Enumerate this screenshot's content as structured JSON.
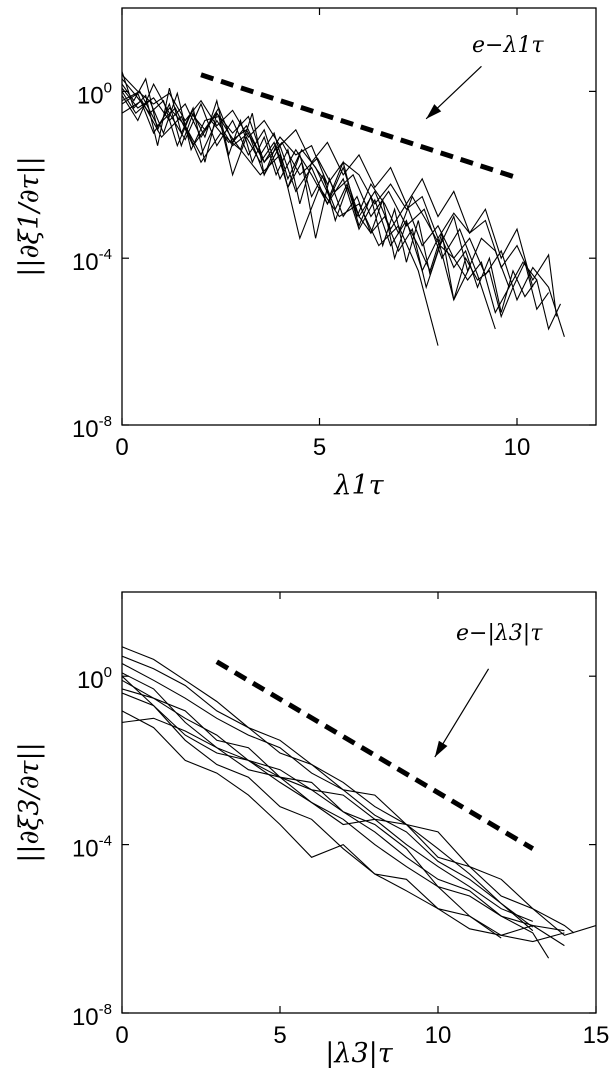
{
  "chart_data": [
    {
      "id": "top",
      "type": "line",
      "yscale": "log",
      "xlim": [
        0,
        12
      ],
      "ylim": [
        1e-08,
        100
      ],
      "xlabel": "λ1τ",
      "ylabel": "||∂ξ1/∂τ||",
      "xticks": [
        {
          "value": 0,
          "label": "0"
        },
        {
          "value": 5,
          "label": "5"
        },
        {
          "value": 10,
          "label": "10"
        }
      ],
      "yticks": [
        {
          "value": 1,
          "base": "10",
          "exp": "0"
        },
        {
          "value": 0.0001,
          "base": "10",
          "exp": "-4"
        },
        {
          "value": 1e-08,
          "base": "10",
          "exp": "-8"
        }
      ],
      "reference": {
        "x": [
          2,
          10
        ],
        "y": [
          2.5,
          0.0085
        ],
        "style": "dashed"
      },
      "annotation": {
        "label": "e−λ1τ",
        "arrow_from": [
          9.1,
          4
        ],
        "arrow_to": [
          7.7,
          0.22
        ]
      },
      "series": [
        {
          "x": [
            0.0,
            0.3,
            0.6,
            0.9,
            1.2,
            1.5,
            1.8,
            2.1,
            2.4,
            2.7,
            3.0,
            3.3,
            3.6,
            3.9,
            4.2,
            4.5,
            4.8,
            5.1,
            5.4,
            5.7,
            6.0,
            6.3,
            6.6,
            6.9,
            7.2,
            7.5,
            7.8,
            8.1,
            8.4,
            8.7,
            9.0,
            9.3,
            9.6,
            9.9,
            10.2,
            10.5,
            10.8,
            11.1
          ],
          "y": [
            1.5,
            0.6,
            2.0,
            0.12,
            0.5,
            0.05,
            0.3,
            0.08,
            0.6,
            0.03,
            0.2,
            0.02,
            0.08,
            0.01,
            0.04,
            0.002,
            0.02,
            0.008,
            0.0015,
            0.006,
            0.0006,
            0.003,
            0.0002,
            0.0015,
            8e-05,
            0.0008,
            4e-05,
            0.0003,
            6e-05,
            0.00015,
            2e-05,
            0.0001,
            5e-06,
            5e-05,
            1.2e-05,
            3e-05,
            2e-06,
            8e-06
          ]
        },
        {
          "x": [
            0.0,
            0.3,
            0.6,
            0.9,
            1.2,
            1.5,
            1.8,
            2.1,
            2.4,
            2.7,
            3.0,
            3.3,
            3.6,
            3.9,
            4.2,
            4.5,
            4.8,
            5.1,
            5.4,
            5.7,
            6.0,
            6.3,
            6.6,
            6.9,
            7.2,
            7.5,
            7.8,
            8.1,
            8.4,
            8.7,
            9.0,
            9.3,
            9.6,
            9.9,
            10.2,
            10.5,
            10.8
          ],
          "y": [
            3.0,
            0.4,
            0.8,
            0.05,
            1.2,
            0.1,
            0.4,
            0.02,
            0.3,
            0.1,
            0.04,
            0.3,
            0.01,
            0.05,
            0.005,
            0.03,
            0.003,
            0.01,
            0.0008,
            0.005,
            0.001,
            0.0004,
            0.0025,
            0.0001,
            0.0007,
            0.0002,
            5e-05,
            0.0004,
            1e-05,
            0.0001,
            3e-05,
            5e-05,
            4e-06,
            2e-05,
            8e-05,
            6e-06,
            1.5e-05
          ]
        },
        {
          "x": [
            0.0,
            0.4,
            0.8,
            1.2,
            1.6,
            2.0,
            2.4,
            2.8,
            3.2,
            3.6,
            4.0,
            4.4,
            4.8,
            5.2,
            5.6,
            6.0,
            6.4,
            6.8,
            7.2,
            7.6,
            8.0,
            8.4,
            8.8,
            9.2,
            9.6,
            10.0,
            10.4,
            10.8,
            11.2
          ],
          "y": [
            0.8,
            0.2,
            1.5,
            0.3,
            0.07,
            0.5,
            0.05,
            0.2,
            0.03,
            0.12,
            0.008,
            0.04,
            0.01,
            0.002,
            0.015,
            0.001,
            0.004,
            0.0005,
            0.002,
            0.0002,
            0.0006,
            0.0001,
            0.0003,
            4e-05,
            0.00015,
            1e-05,
            6e-05,
            2e-05,
            1.3e-06
          ]
        },
        {
          "x": [
            0.0,
            0.35,
            0.7,
            1.05,
            1.4,
            1.75,
            2.1,
            2.45,
            2.8,
            3.15,
            3.5,
            3.85,
            4.2,
            4.55,
            4.9,
            5.25,
            5.6,
            5.95,
            6.3,
            6.65,
            7.0,
            7.35,
            7.7,
            8.05,
            8.4,
            8.75,
            9.1,
            9.45,
            9.8
          ],
          "y": [
            1.0,
            0.3,
            0.6,
            0.1,
            0.9,
            0.04,
            0.2,
            0.25,
            0.01,
            0.08,
            0.02,
            0.06,
            0.005,
            0.02,
            0.0003,
            0.008,
            0.001,
            0.003,
            0.0004,
            0.001,
            0.00015,
            0.0005,
            2e-05,
            0.0002,
            0.0001,
            3e-05,
            8e-05,
            5e-06,
            2e-05
          ]
        },
        {
          "x": [
            0.0,
            0.4,
            0.8,
            1.2,
            1.6,
            2.0,
            2.4,
            2.8,
            3.2,
            3.6,
            4.0,
            4.4,
            4.8,
            5.2,
            5.6,
            6.0,
            6.4,
            6.8,
            7.2,
            7.6,
            8.0,
            8.4,
            8.8
          ],
          "y": [
            0.5,
            0.9,
            0.1,
            0.4,
            0.15,
            0.03,
            0.2,
            0.05,
            0.1,
            0.01,
            0.05,
            0.004,
            0.015,
            0.002,
            0.008,
            0.0005,
            0.0025,
            0.0002,
            0.0008,
            5e-05,
            0.0003,
            1e-05,
            6e-05
          ]
        },
        {
          "x": [
            0.0,
            0.35,
            0.7,
            1.05,
            1.4,
            1.75,
            2.1,
            2.45,
            2.8,
            3.15,
            3.5,
            3.85,
            4.2,
            4.55,
            4.9,
            5.25,
            5.6,
            5.95,
            6.3,
            6.65,
            7.0,
            7.35,
            7.7,
            8.05,
            8.4,
            8.75,
            9.1,
            9.45,
            9.8,
            10.15,
            10.5
          ],
          "y": [
            2.0,
            0.8,
            0.3,
            0.6,
            0.05,
            0.3,
            0.12,
            0.4,
            0.06,
            0.15,
            0.03,
            0.1,
            0.008,
            0.04,
            0.015,
            0.003,
            0.02,
            0.001,
            0.006,
            0.002,
            0.0004,
            0.003,
            0.0008,
            0.0002,
            0.001,
            5e-05,
            0.0003,
            0.00015,
            2e-05,
            8e-05,
            3e-05
          ]
        },
        {
          "x": [
            0.0,
            0.5,
            1.0,
            1.5,
            2.0,
            2.5,
            3.0,
            3.5,
            4.0,
            4.5,
            5.0,
            5.5,
            6.0,
            6.5,
            7.0,
            7.5,
            8.0
          ],
          "y": [
            0.3,
            0.6,
            0.08,
            0.25,
            0.02,
            0.1,
            0.04,
            0.01,
            0.03,
            0.0003,
            0.005,
            0.001,
            0.002,
            0.0002,
            0.0006,
            5e-05,
            8e-07
          ]
        },
        {
          "x": [
            0.0,
            0.4,
            0.8,
            1.2,
            1.6,
            2.0,
            2.4,
            2.8,
            3.2,
            3.6,
            4.0,
            4.4,
            4.8,
            5.2,
            5.6,
            6.0,
            6.4,
            6.8,
            7.2,
            7.6,
            8.0,
            8.4,
            8.8,
            9.2,
            9.6,
            10.0,
            10.4,
            10.8,
            11.0
          ],
          "y": [
            1.2,
            0.4,
            0.7,
            0.2,
            0.5,
            0.08,
            0.3,
            0.1,
            0.25,
            0.02,
            0.08,
            0.03,
            0.05,
            0.006,
            0.02,
            0.01,
            0.002,
            0.006,
            0.0015,
            0.003,
            0.0003,
            0.0012,
            0.0004,
            0.0008,
            6e-05,
            0.0002,
            3e-05,
            0.00012,
            4e-06
          ]
        },
        {
          "x": [
            0.0,
            0.45,
            0.9,
            1.35,
            1.8,
            2.25,
            2.7,
            3.15,
            3.6,
            4.05,
            4.5,
            4.95,
            5.4,
            5.85,
            6.3,
            6.75,
            7.2,
            7.65,
            8.1,
            8.55,
            9.0,
            9.45
          ],
          "y": [
            0.6,
            1.0,
            0.15,
            0.4,
            0.05,
            0.2,
            0.06,
            0.12,
            0.02,
            0.06,
            0.01,
            0.025,
            0.004,
            0.01,
            0.001,
            0.004,
            0.0006,
            0.0015,
            0.0001,
            0.0005,
            4e-05,
            2e-06
          ]
        },
        {
          "x": [
            0.0,
            0.4,
            0.8,
            1.2,
            1.6,
            2.0,
            2.4,
            2.8,
            3.2,
            3.6,
            4.0,
            4.4,
            4.8,
            5.2,
            5.6,
            6.0,
            6.4,
            6.8,
            7.2,
            7.6,
            8.0,
            8.4,
            8.8,
            9.2,
            9.6,
            10.0,
            10.4
          ],
          "y": [
            2.5,
            1.0,
            0.5,
            0.9,
            0.2,
            0.6,
            0.15,
            0.35,
            0.08,
            0.2,
            0.05,
            0.12,
            0.02,
            0.06,
            0.01,
            0.03,
            0.005,
            0.015,
            0.002,
            0.008,
            0.001,
            0.004,
            0.0004,
            0.0015,
            0.0001,
            0.0005,
            2e-05
          ]
        }
      ]
    },
    {
      "id": "bottom",
      "type": "line",
      "yscale": "log",
      "xlim": [
        0,
        15
      ],
      "ylim": [
        1e-08,
        100
      ],
      "xlabel": "|λ3|τ",
      "ylabel": "||∂ξ3/∂τ||",
      "xticks": [
        {
          "value": 0,
          "label": "0"
        },
        {
          "value": 5,
          "label": "5"
        },
        {
          "value": 10,
          "label": "10"
        },
        {
          "value": 15,
          "label": "15"
        }
      ],
      "yticks": [
        {
          "value": 1,
          "base": "10",
          "exp": "0"
        },
        {
          "value": 0.0001,
          "base": "10",
          "exp": "-4"
        },
        {
          "value": 1e-08,
          "base": "10",
          "exp": "-8"
        }
      ],
      "reference": {
        "x": [
          3,
          13
        ],
        "y": [
          2.2,
          8e-05
        ],
        "style": "dashed"
      },
      "annotation": {
        "label": "e−|λ3|τ",
        "arrow_from": [
          11.6,
          1.5
        ],
        "arrow_to": [
          9.9,
          0.012
        ]
      },
      "series": [
        {
          "x": [
            0,
            1,
            2,
            3,
            4,
            5,
            6,
            7,
            8,
            9,
            10,
            11,
            12,
            13
          ],
          "y": [
            5,
            2.5,
            0.8,
            0.25,
            0.06,
            0.03,
            0.008,
            0.003,
            0.0008,
            0.0003,
            8e-05,
            2e-05,
            4e-06,
            1.1e-06
          ]
        },
        {
          "x": [
            0,
            1,
            2,
            3,
            4,
            5,
            6,
            7,
            8,
            9,
            10,
            11,
            12,
            13,
            14,
            14.3
          ],
          "y": [
            3,
            1.5,
            0.6,
            0.15,
            0.06,
            0.015,
            0.008,
            0.002,
            0.0015,
            0.0003,
            0.0002,
            3e-05,
            1.5e-05,
            3e-06,
            1.2e-06,
            8e-07
          ]
        },
        {
          "x": [
            0,
            1,
            2,
            3,
            4,
            5,
            6,
            7,
            8,
            9,
            10,
            11,
            12,
            13,
            14,
            15
          ],
          "y": [
            0.08,
            0.1,
            0.05,
            0.02,
            0.006,
            0.004,
            0.002,
            0.0015,
            0.0004,
            0.0003,
            5e-05,
            3e-05,
            6e-06,
            3e-06,
            7e-07,
            1.2e-06
          ]
        },
        {
          "x": [
            0,
            1,
            2,
            3,
            4,
            5,
            6,
            7,
            8,
            9,
            10,
            11,
            12,
            13,
            14
          ],
          "y": [
            0.4,
            0.2,
            0.03,
            0.008,
            0.004,
            0.0008,
            0.0004,
            8e-05,
            2e-05,
            8e-06,
            3e-06,
            1e-06,
            7e-07,
            5e-07,
            8e-07
          ]
        },
        {
          "x": [
            0,
            1,
            2,
            3,
            4,
            5,
            6,
            7,
            8,
            9,
            10,
            11,
            12,
            13
          ],
          "y": [
            0.8,
            0.3,
            0.1,
            0.04,
            0.01,
            0.004,
            0.001,
            0.0003,
            0.0004,
            0.0001,
            3e-05,
            1e-05,
            3e-06,
            1.5e-06
          ]
        },
        {
          "x": [
            0,
            1,
            2,
            3,
            4,
            5,
            6,
            7,
            8,
            9,
            10,
            11,
            12,
            13,
            14
          ],
          "y": [
            1.2,
            0.5,
            0.08,
            0.02,
            0.01,
            0.006,
            0.002,
            0.0006,
            0.0002,
            5e-05,
            1.5e-05,
            8e-06,
            2e-06,
            1.2e-06,
            9e-07
          ]
        },
        {
          "x": [
            0,
            1,
            2,
            3,
            4,
            5,
            6,
            7,
            8,
            9,
            10,
            11,
            12,
            13,
            13.5
          ],
          "y": [
            0.5,
            0.3,
            0.15,
            0.03,
            0.02,
            0.004,
            0.003,
            0.0006,
            0.0003,
            8e-05,
            1e-05,
            6e-06,
            2e-06,
            8e-07,
            2e-07
          ]
        },
        {
          "x": [
            0,
            1,
            2,
            3,
            4,
            5,
            6,
            7,
            8,
            9,
            10,
            11,
            12,
            13,
            14
          ],
          "y": [
            0.15,
            0.06,
            0.01,
            0.005,
            0.0015,
            0.0003,
            5e-05,
            0.0001,
            2e-05,
            1.5e-05,
            3e-06,
            2e-06,
            7e-07,
            1.2e-06,
            4e-07
          ]
        },
        {
          "x": [
            0,
            1,
            2,
            3,
            4,
            5,
            6,
            7,
            8,
            9,
            10,
            11,
            12,
            13
          ],
          "y": [
            2,
            0.8,
            0.3,
            0.1,
            0.04,
            0.02,
            0.005,
            0.002,
            0.0005,
            0.0002,
            4e-05,
            1.5e-05,
            4e-06,
            9e-07
          ]
        },
        {
          "x": [
            0,
            1,
            2,
            3,
            4,
            5,
            6,
            7,
            8,
            9,
            10,
            11,
            12
          ],
          "y": [
            1,
            0.2,
            0.04,
            0.015,
            0.01,
            0.003,
            0.001,
            0.0004,
            0.0001,
            3e-05,
            1e-05,
            2e-06,
            6e-07
          ]
        }
      ]
    }
  ]
}
